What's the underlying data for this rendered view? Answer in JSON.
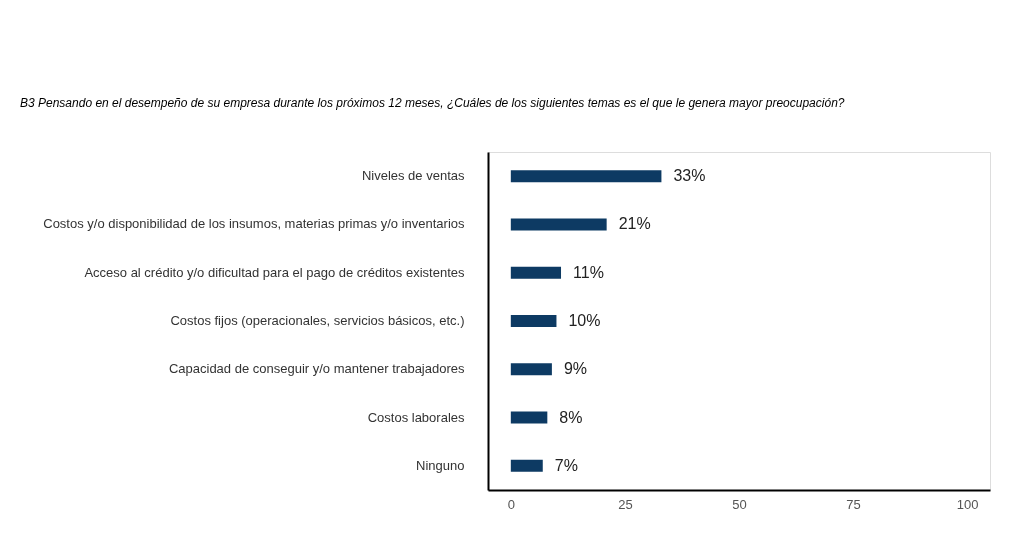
{
  "chart_data": {
    "type": "bar",
    "orientation": "horizontal",
    "title": "B3 Pensando en el desempeño de su empresa durante los próximos 12 meses, ¿Cuáles de los siguientes temas es el que le genera mayor preocupación?",
    "categories": [
      "Niveles de ventas",
      "Costos y/o disponibilidad de los insumos, materias primas y/o inventarios",
      "Acceso al crédito y/o dificultad para el pago de créditos existentes",
      "Costos fijos (operacionales, servicios básicos, etc.)",
      "Capacidad de conseguir y/o mantener trabajadores",
      "Costos laborales",
      "Ninguno"
    ],
    "values": [
      33,
      21,
      11,
      10,
      9,
      8,
      7
    ],
    "value_labels": [
      "33%",
      "21%",
      "11%",
      "10%",
      "9%",
      "8%",
      "7%"
    ],
    "color": "#0d3a63",
    "xlim": [
      -5,
      105
    ],
    "xticks": [
      0,
      25,
      50,
      75,
      100
    ],
    "grid": false
  }
}
